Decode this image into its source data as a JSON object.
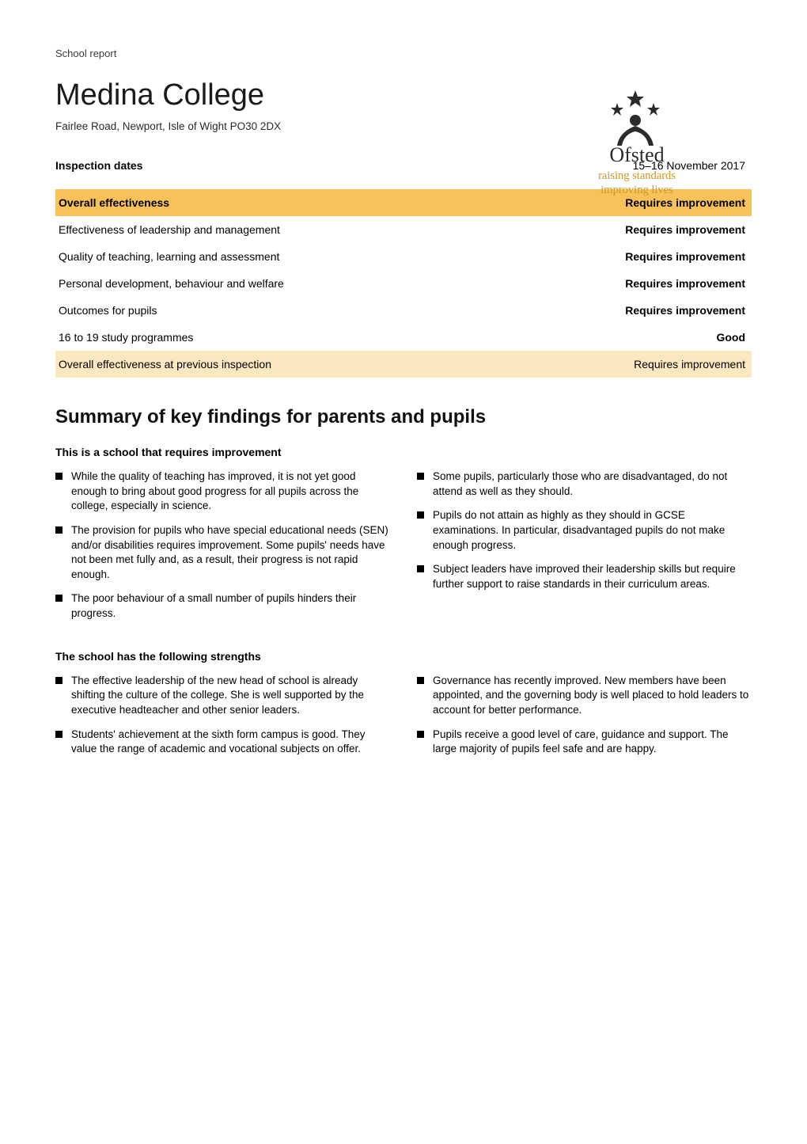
{
  "header_label": "School report",
  "logo": {
    "top_text": "Ofsted",
    "line1": "raising standards",
    "line2": "improving lives",
    "colors": {
      "gold": "#c79a2a",
      "text": "#2b2b2b"
    }
  },
  "title": "Medina College",
  "subtitle": "Fairlee Road, Newport, Isle of Wight PO30 2DX",
  "inspection": {
    "label": "Inspection dates",
    "value": "15–16 November 2017"
  },
  "table": {
    "highlight_bg": "#f8c15a",
    "pale_bg": "#fce8c0",
    "rows": [
      {
        "label": "Overall effectiveness",
        "value": "Requires improvement",
        "style": "highlight"
      },
      {
        "label": "Effectiveness of leadership and management",
        "value": "Requires improvement",
        "style": "plain"
      },
      {
        "label": "Quality of teaching, learning and assessment",
        "value": "Requires improvement",
        "style": "plain"
      },
      {
        "label": "Personal development, behaviour and welfare",
        "value": "Requires improvement",
        "style": "plain"
      },
      {
        "label": "Outcomes for pupils",
        "value": "Requires improvement",
        "style": "plain"
      },
      {
        "label": "16 to 19 study programmes",
        "value": "Good",
        "style": "plain"
      },
      {
        "label": "Overall effectiveness at previous inspection",
        "value": "Requires improvement",
        "style": "pale"
      }
    ]
  },
  "summary_title": "Summary of key findings for parents and pupils",
  "section_requires": {
    "label": "This is a school that requires improvement",
    "left": [
      "While the quality of teaching has improved, it is not yet good enough to bring about good progress for all pupils across the college, especially in science.",
      "The provision for pupils who have special educational needs (SEN) and/or disabilities requires improvement. Some pupils' needs have not been met fully and, as a result, their progress is not rapid enough.",
      "The poor behaviour of a small number of pupils hinders their progress."
    ],
    "right": [
      "Some pupils, particularly those who are disadvantaged, do not attend as well as they should.",
      "Pupils do not attain as highly as they should in GCSE examinations. In particular, disadvantaged pupils do not make enough progress.",
      "Subject leaders have improved their leadership skills but require further support to raise standards in their curriculum areas."
    ]
  },
  "section_strengths": {
    "label": "The school has the following strengths",
    "left": [
      "The effective leadership of the new head of school is already shifting the culture of the college. She is well supported by the executive headteacher and other senior leaders.",
      "Students' achievement at the sixth form campus is good. They value the range of academic and vocational subjects on offer."
    ],
    "right": [
      "Governance has recently improved. New members have been appointed, and the governing body is well placed to hold leaders to account for better performance.",
      "Pupils receive a good level of care, guidance and support. The large majority of pupils feel safe and are happy."
    ]
  }
}
